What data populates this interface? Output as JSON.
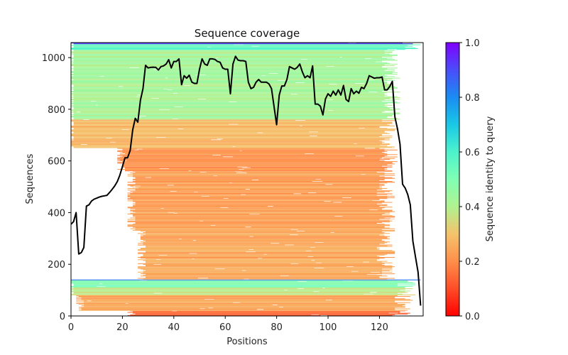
{
  "chart_data": {
    "type": "heatmap",
    "title": "Sequence coverage",
    "xlabel": "Positions",
    "ylabel": "Sequences",
    "xlim": [
      0,
      137
    ],
    "ylim": [
      0,
      1058
    ],
    "xticks": [
      0,
      20,
      40,
      60,
      80,
      100,
      120
    ],
    "yticks": [
      0,
      200,
      400,
      600,
      800,
      1000
    ],
    "grid": false,
    "colorbar": {
      "label": "Sequence identity to query",
      "range": [
        0,
        1
      ],
      "ticks": [
        "0.0",
        "0.2",
        "0.4",
        "0.6",
        "0.8",
        "1.0"
      ],
      "colormap": "rainbow_r"
    },
    "blocks": [
      {
        "seq_from": 0,
        "seq_to": 20,
        "pos_from": 22,
        "pos_to": 132,
        "identity": 0.12
      },
      {
        "seq_from": 20,
        "seq_to": 80,
        "pos_from": 2,
        "pos_to": 133,
        "identity": 0.24
      },
      {
        "seq_from": 80,
        "seq_to": 110,
        "pos_from": 0,
        "pos_to": 134,
        "identity": 0.36
      },
      {
        "seq_from": 110,
        "seq_to": 138,
        "pos_from": 0,
        "pos_to": 134,
        "identity": 0.5
      },
      {
        "seq_from": 138,
        "seq_to": 141,
        "pos_from": 0,
        "pos_to": 136,
        "identity": 0.85
      },
      {
        "seq_from": 141,
        "seq_to": 330,
        "pos_from": 26,
        "pos_to": 126,
        "identity": 0.24
      },
      {
        "seq_from": 330,
        "seq_to": 560,
        "pos_from": 22,
        "pos_to": 126,
        "identity": 0.23
      },
      {
        "seq_from": 560,
        "seq_to": 650,
        "pos_from": 18,
        "pos_to": 127,
        "identity": 0.2
      },
      {
        "seq_from": 650,
        "seq_to": 760,
        "pos_from": 0,
        "pos_to": 127,
        "identity": 0.27
      },
      {
        "seq_from": 760,
        "seq_to": 1030,
        "pos_from": 0,
        "pos_to": 128,
        "identity": 0.42
      },
      {
        "seq_from": 1030,
        "seq_to": 1052,
        "pos_from": 0,
        "pos_to": 136,
        "identity": 0.56
      },
      {
        "seq_from": 1052,
        "seq_to": 1058,
        "pos_from": 0,
        "pos_to": 136,
        "identity": 0.92
      }
    ],
    "coverage_line": {
      "name": "coverage",
      "color": "#000000",
      "x": [
        0,
        1,
        2,
        3,
        4,
        5,
        6,
        7,
        8,
        9,
        10,
        11,
        12,
        13,
        14,
        15,
        16,
        17,
        18,
        19,
        20,
        21,
        22,
        23,
        24,
        25,
        26,
        27,
        28,
        29,
        30,
        31,
        32,
        33,
        34,
        35,
        36,
        37,
        38,
        39,
        40,
        41,
        42,
        43,
        44,
        45,
        46,
        47,
        48,
        49,
        50,
        51,
        52,
        53,
        54,
        55,
        56,
        57,
        58,
        59,
        60,
        61,
        62,
        63,
        64,
        65,
        66,
        67,
        68,
        69,
        70,
        71,
        72,
        73,
        74,
        75,
        76,
        77,
        78,
        79,
        80,
        81,
        82,
        83,
        84,
        85,
        86,
        87,
        88,
        89,
        90,
        91,
        92,
        93,
        94,
        95,
        96,
        97,
        98,
        99,
        100,
        101,
        102,
        103,
        104,
        105,
        106,
        107,
        108,
        109,
        110,
        111,
        112,
        113,
        114,
        115,
        116,
        117,
        118,
        119,
        120,
        121,
        122,
        123,
        124,
        125,
        126,
        127,
        128,
        129,
        130,
        131,
        132,
        133,
        134,
        135,
        136
      ],
      "y": [
        355,
        365,
        400,
        240,
        245,
        265,
        425,
        430,
        445,
        452,
        456,
        460,
        463,
        465,
        467,
        478,
        490,
        503,
        520,
        545,
        578,
        612,
        612,
        640,
        720,
        765,
        750,
        835,
        880,
        970,
        960,
        962,
        963,
        962,
        952,
        965,
        968,
        975,
        992,
        960,
        985,
        985,
        995,
        895,
        930,
        920,
        932,
        905,
        900,
        900,
        955,
        995,
        975,
        970,
        995,
        995,
        993,
        985,
        982,
        960,
        955,
        955,
        860,
        975,
        1005,
        990,
        988,
        988,
        985,
        905,
        880,
        885,
        905,
        915,
        905,
        905,
        905,
        898,
        880,
        810,
        740,
        855,
        890,
        890,
        915,
        965,
        960,
        955,
        962,
        975,
        945,
        922,
        930,
        922,
        968,
        820,
        820,
        812,
        778,
        840,
        860,
        850,
        870,
        855,
        875,
        855,
        892,
        838,
        830,
        880,
        860,
        870,
        862,
        885,
        880,
        900,
        930,
        925,
        920,
        922,
        922,
        925,
        875,
        875,
        888,
        908,
        770,
        725,
        665,
        510,
        495,
        470,
        430,
        290,
        230,
        170,
        40
      ]
    }
  }
}
